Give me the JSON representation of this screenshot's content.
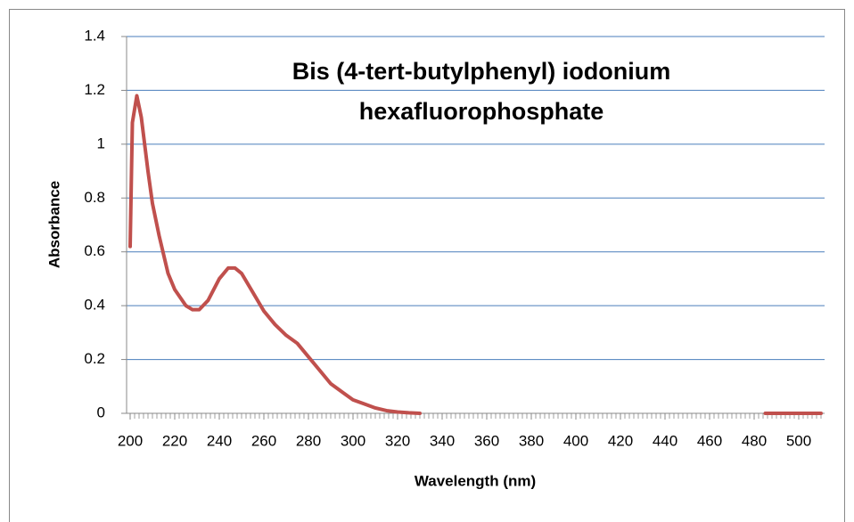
{
  "chart_data": {
    "type": "line",
    "title": [
      "Bis (4-tert-butylphenyl) iodonium",
      "hexafluorophosphate"
    ],
    "x_label": "Wavelength (nm)",
    "y_label": "Absorbance",
    "x": [
      200,
      201,
      203,
      205,
      208,
      210,
      213,
      217,
      220,
      225,
      228,
      231,
      235,
      240,
      244,
      247,
      250,
      255,
      260,
      265,
      270,
      275,
      280,
      285,
      290,
      295,
      300,
      305,
      310,
      315,
      320,
      325,
      330,
      400,
      485,
      510
    ],
    "series": [
      {
        "name": "Absorbance",
        "color": "#c0504d",
        "values": [
          0.62,
          1.08,
          1.18,
          1.1,
          0.9,
          0.78,
          0.66,
          0.52,
          0.46,
          0.4,
          0.385,
          0.385,
          0.42,
          0.5,
          0.54,
          0.54,
          0.52,
          0.45,
          0.38,
          0.33,
          0.29,
          0.26,
          0.21,
          0.16,
          0.11,
          0.08,
          0.05,
          0.035,
          0.02,
          0.01,
          0.005,
          0.002,
          0,
          null,
          0,
          0
        ]
      }
    ],
    "xlim": [
      200,
      510
    ],
    "ylim": [
      0,
      1.4
    ],
    "xticks": [
      200,
      220,
      240,
      260,
      280,
      300,
      320,
      340,
      360,
      380,
      400,
      420,
      440,
      460,
      480,
      500
    ],
    "yticks": [
      0,
      0.2,
      0.4,
      0.6,
      0.8,
      1,
      1.2,
      1.4
    ],
    "minor_tick_interval": 2,
    "grid": true,
    "grid_color": "#4a7ebb"
  }
}
